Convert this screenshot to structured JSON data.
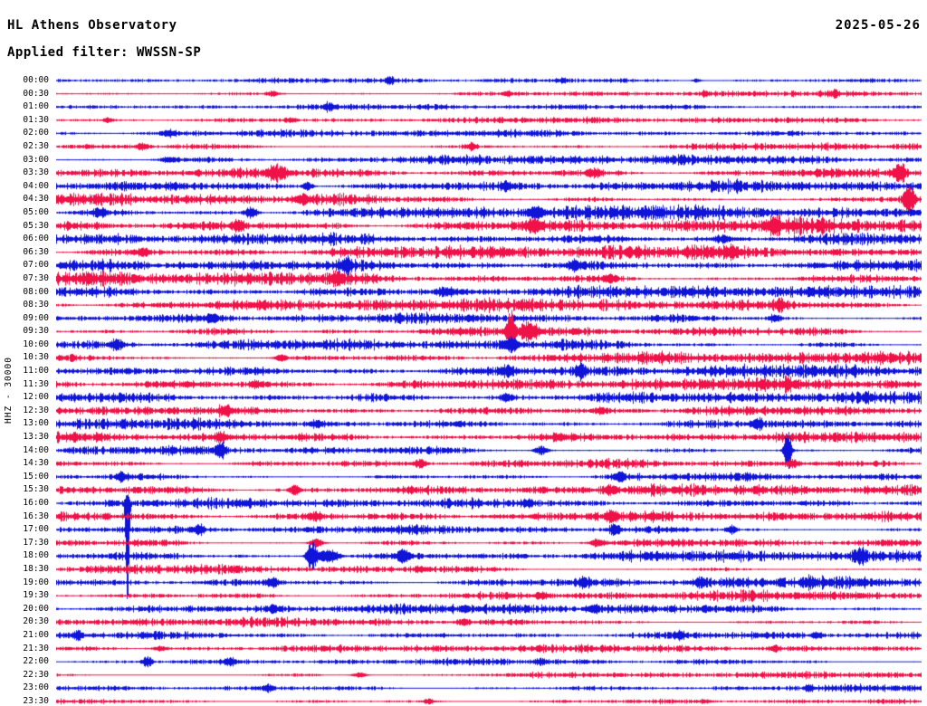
{
  "header": {
    "title": "HL Athens Observatory",
    "date": "2025-05-26",
    "filter_label": "Applied filter: WWSSN-SP"
  },
  "y_axis_label": "HHZ - 30000",
  "colors": {
    "blue": "#0f14d8",
    "red": "#ef1148",
    "background": "#ffffff",
    "text": "#000000"
  },
  "chart_data": {
    "type": "line",
    "title": "HL Athens Observatory helicorder day plot",
    "xlabel": "",
    "ylabel": "HHZ - 30000",
    "row_interval_minutes": 30,
    "legend": "off",
    "grid": "off",
    "rows": [
      {
        "time": "00:00",
        "color": "blue",
        "amp": 2.2,
        "ev": [
          {
            "pos": 0.385,
            "a": 5,
            "w": 3
          },
          {
            "pos": 0.585,
            "a": 2.5,
            "w": 4
          },
          {
            "pos": 0.74,
            "a": 2,
            "w": 3
          }
        ]
      },
      {
        "time": "00:30",
        "color": "red",
        "amp": 2.0,
        "ev": [
          {
            "pos": 0.25,
            "a": 3,
            "w": 4
          },
          {
            "pos": 0.52,
            "a": 2,
            "w": 4
          },
          {
            "pos": 0.75,
            "a": 3,
            "w": 3
          },
          {
            "pos": 0.9,
            "a": 3,
            "w": 3
          }
        ]
      },
      {
        "time": "01:00",
        "color": "blue",
        "amp": 2.0,
        "ev": [
          {
            "pos": 0.315,
            "a": 4,
            "w": 4
          }
        ]
      },
      {
        "time": "01:30",
        "color": "red",
        "amp": 2.2,
        "ev": [
          {
            "pos": 0.06,
            "a": 2,
            "w": 4
          },
          {
            "pos": 0.27,
            "a": 2,
            "w": 5
          }
        ]
      },
      {
        "time": "02:00",
        "color": "blue",
        "amp": 2.8,
        "ev": [
          {
            "pos": 0.13,
            "a": 3,
            "w": 5
          }
        ]
      },
      {
        "time": "02:30",
        "color": "red",
        "amp": 3.2,
        "ev": [
          {
            "pos": 0.1,
            "a": 3,
            "w": 5
          },
          {
            "pos": 0.48,
            "a": 4,
            "w": 4
          }
        ]
      },
      {
        "time": "03:00",
        "color": "blue",
        "amp": 3.6,
        "ev": [
          {
            "pos": 0.13,
            "a": 3,
            "w": 6
          }
        ]
      },
      {
        "time": "03:30",
        "color": "red",
        "amp": 4.2,
        "ev": [
          {
            "pos": 0.255,
            "a": 7,
            "w": 6
          },
          {
            "pos": 0.62,
            "a": 4,
            "w": 5
          },
          {
            "pos": 0.975,
            "a": 12,
            "w": 4
          }
        ]
      },
      {
        "time": "04:00",
        "color": "blue",
        "amp": 4.2,
        "ev": [
          {
            "pos": 0.29,
            "a": 5,
            "w": 4
          },
          {
            "pos": 0.52,
            "a": 3,
            "w": 5
          }
        ]
      },
      {
        "time": "04:30",
        "color": "red",
        "amp": 4.6,
        "ev": [
          {
            "pos": 0.285,
            "a": 5,
            "w": 5
          },
          {
            "pos": 0.985,
            "a": 16,
            "w": 4
          }
        ]
      },
      {
        "time": "05:00",
        "color": "blue",
        "amp": 5.0,
        "ev": [
          {
            "pos": 0.05,
            "a": 4,
            "w": 5
          },
          {
            "pos": 0.225,
            "a": 6,
            "w": 5
          },
          {
            "pos": 0.555,
            "a": 7,
            "w": 5
          }
        ]
      },
      {
        "time": "05:30",
        "color": "red",
        "amp": 5.0,
        "ev": [
          {
            "pos": 0.21,
            "a": 5,
            "w": 5
          },
          {
            "pos": 0.55,
            "a": 6,
            "w": 6
          },
          {
            "pos": 0.83,
            "a": 6,
            "w": 5
          }
        ]
      },
      {
        "time": "06:00",
        "color": "blue",
        "amp": 4.8,
        "ev": [
          {
            "pos": 0.77,
            "a": 4,
            "w": 6
          }
        ]
      },
      {
        "time": "06:30",
        "color": "red",
        "amp": 4.8,
        "ev": [
          {
            "pos": 0.1,
            "a": 4,
            "w": 5
          },
          {
            "pos": 0.78,
            "a": 4,
            "w": 5
          }
        ]
      },
      {
        "time": "07:00",
        "color": "blue",
        "amp": 4.8,
        "ev": [
          {
            "pos": 0.335,
            "a": 6,
            "w": 5
          },
          {
            "pos": 0.6,
            "a": 5,
            "w": 5
          }
        ]
      },
      {
        "time": "07:30",
        "color": "red",
        "amp": 4.8,
        "ev": [
          {
            "pos": 0.325,
            "a": 6,
            "w": 5
          },
          {
            "pos": 0.64,
            "a": 4,
            "w": 5
          }
        ]
      },
      {
        "time": "08:00",
        "color": "blue",
        "amp": 4.6,
        "ev": [
          {
            "pos": 0.45,
            "a": 4,
            "w": 6
          }
        ]
      },
      {
        "time": "08:30",
        "color": "red",
        "amp": 4.4,
        "ev": [
          {
            "pos": 0.835,
            "a": 6,
            "w": 4
          }
        ]
      },
      {
        "time": "09:00",
        "color": "blue",
        "amp": 4.4,
        "ev": [
          {
            "pos": 0.18,
            "a": 4,
            "w": 5
          },
          {
            "pos": 0.83,
            "a": 4,
            "w": 5
          }
        ]
      },
      {
        "time": "09:30",
        "color": "red",
        "amp": 4.4,
        "ev": [
          {
            "pos": 0.525,
            "a": 26,
            "w": 3
          },
          {
            "pos": 0.545,
            "a": 8,
            "w": 8
          }
        ]
      },
      {
        "time": "10:00",
        "color": "blue",
        "amp": 4.8,
        "ev": [
          {
            "pos": 0.07,
            "a": 4,
            "w": 5
          },
          {
            "pos": 0.525,
            "a": 6,
            "w": 6
          }
        ]
      },
      {
        "time": "10:30",
        "color": "red",
        "amp": 4.4,
        "ev": [
          {
            "pos": 0.26,
            "a": 4,
            "w": 5
          }
        ]
      },
      {
        "time": "11:00",
        "color": "blue",
        "amp": 4.4,
        "ev": [
          {
            "pos": 0.52,
            "a": 5,
            "w": 4
          },
          {
            "pos": 0.605,
            "a": 9,
            "w": 4
          }
        ]
      },
      {
        "time": "11:30",
        "color": "red",
        "amp": 4.2,
        "ev": [
          {
            "pos": 0.23,
            "a": 4,
            "w": 5
          },
          {
            "pos": 0.845,
            "a": 4,
            "w": 4
          }
        ]
      },
      {
        "time": "12:00",
        "color": "blue",
        "amp": 4.2,
        "ev": [
          {
            "pos": 0.52,
            "a": 4,
            "w": 5
          }
        ]
      },
      {
        "time": "12:30",
        "color": "red",
        "amp": 3.8,
        "ev": [
          {
            "pos": 0.195,
            "a": 4,
            "w": 5
          },
          {
            "pos": 0.63,
            "a": 3,
            "w": 5
          }
        ]
      },
      {
        "time": "13:00",
        "color": "blue",
        "amp": 3.8,
        "ev": [
          {
            "pos": 0.3,
            "a": 3,
            "w": 5
          },
          {
            "pos": 0.81,
            "a": 6,
            "w": 4
          }
        ]
      },
      {
        "time": "13:30",
        "color": "red",
        "amp": 3.8,
        "ev": [
          {
            "pos": 0.19,
            "a": 4,
            "w": 5
          },
          {
            "pos": 0.58,
            "a": 3,
            "w": 5
          }
        ]
      },
      {
        "time": "14:00",
        "color": "blue",
        "amp": 4.0,
        "ev": [
          {
            "pos": 0.19,
            "a": 8,
            "w": 4
          },
          {
            "pos": 0.56,
            "a": 5,
            "w": 5
          },
          {
            "pos": 0.845,
            "a": 22,
            "w": 3
          }
        ]
      },
      {
        "time": "14:30",
        "color": "red",
        "amp": 3.8,
        "ev": [
          {
            "pos": 0.42,
            "a": 5,
            "w": 5
          },
          {
            "pos": 0.85,
            "a": 4,
            "w": 6
          }
        ]
      },
      {
        "time": "15:00",
        "color": "blue",
        "amp": 3.8,
        "ev": [
          {
            "pos": 0.075,
            "a": 5,
            "w": 4
          },
          {
            "pos": 0.65,
            "a": 5,
            "w": 5
          }
        ]
      },
      {
        "time": "15:30",
        "color": "red",
        "amp": 3.8,
        "ev": [
          {
            "pos": 0.275,
            "a": 6,
            "w": 4
          },
          {
            "pos": 0.64,
            "a": 4,
            "w": 5
          }
        ]
      },
      {
        "time": "16:00",
        "color": "blue",
        "amp": 3.8,
        "ev": [
          {
            "pos": 0.082,
            "a": 10,
            "w": 1.6,
            "dn": 100
          },
          {
            "pos": 0.545,
            "a": 4,
            "w": 5
          }
        ]
      },
      {
        "time": "16:30",
        "color": "red",
        "amp": 3.8,
        "ev": [
          {
            "pos": 0.3,
            "a": 4,
            "w": 5
          },
          {
            "pos": 0.64,
            "a": 6,
            "w": 4
          }
        ]
      },
      {
        "time": "17:00",
        "color": "blue",
        "amp": 3.8,
        "ev": [
          {
            "pos": 0.165,
            "a": 5,
            "w": 4
          },
          {
            "pos": 0.645,
            "a": 7,
            "w": 4
          },
          {
            "pos": 0.78,
            "a": 5,
            "w": 4
          }
        ]
      },
      {
        "time": "17:30",
        "color": "red",
        "amp": 3.8,
        "ev": [
          {
            "pos": 0.3,
            "a": 5,
            "w": 5
          },
          {
            "pos": 0.625,
            "a": 4,
            "w": 5
          }
        ]
      },
      {
        "time": "18:00",
        "color": "blue",
        "amp": 4.0,
        "ev": [
          {
            "pos": 0.295,
            "a": 16,
            "w": 4
          },
          {
            "pos": 0.315,
            "a": 8,
            "w": 8
          },
          {
            "pos": 0.4,
            "a": 6,
            "w": 5
          },
          {
            "pos": 0.93,
            "a": 8,
            "w": 4
          }
        ]
      },
      {
        "time": "18:30",
        "color": "red",
        "amp": 3.6,
        "ev": [
          {
            "pos": 0.42,
            "a": 3,
            "w": 5
          }
        ]
      },
      {
        "time": "19:00",
        "color": "blue",
        "amp": 3.6,
        "ev": [
          {
            "pos": 0.25,
            "a": 4,
            "w": 5
          },
          {
            "pos": 0.61,
            "a": 5,
            "w": 4
          },
          {
            "pos": 0.745,
            "a": 5,
            "w": 4
          },
          {
            "pos": 0.87,
            "a": 4,
            "w": 4
          }
        ]
      },
      {
        "time": "19:30",
        "color": "red",
        "amp": 3.2,
        "ev": [
          {
            "pos": 0.56,
            "a": 3,
            "w": 5
          }
        ]
      },
      {
        "time": "20:00",
        "color": "blue",
        "amp": 3.4,
        "ev": [
          {
            "pos": 0.25,
            "a": 3,
            "w": 5
          },
          {
            "pos": 0.62,
            "a": 4,
            "w": 4
          }
        ]
      },
      {
        "time": "20:30",
        "color": "red",
        "amp": 3.0,
        "ev": [
          {
            "pos": 0.47,
            "a": 3,
            "w": 5
          }
        ]
      },
      {
        "time": "21:00",
        "color": "blue",
        "amp": 3.0,
        "ev": [
          {
            "pos": 0.025,
            "a": 5,
            "w": 3
          },
          {
            "pos": 0.72,
            "a": 4,
            "w": 4
          },
          {
            "pos": 0.88,
            "a": 3,
            "w": 4
          }
        ]
      },
      {
        "time": "21:30",
        "color": "red",
        "amp": 2.6,
        "ev": [
          {
            "pos": 0.12,
            "a": 2.5,
            "w": 5
          },
          {
            "pos": 0.83,
            "a": 3,
            "w": 4
          }
        ]
      },
      {
        "time": "22:00",
        "color": "blue",
        "amp": 3.0,
        "ev": [
          {
            "pos": 0.105,
            "a": 6,
            "w": 4
          },
          {
            "pos": 0.2,
            "a": 4,
            "w": 4
          },
          {
            "pos": 0.56,
            "a": 3,
            "w": 5
          }
        ]
      },
      {
        "time": "22:30",
        "color": "red",
        "amp": 2.4,
        "ev": [
          {
            "pos": 0.35,
            "a": 2.5,
            "w": 5
          }
        ]
      },
      {
        "time": "23:00",
        "color": "blue",
        "amp": 2.6,
        "ev": [
          {
            "pos": 0.245,
            "a": 4,
            "w": 4
          },
          {
            "pos": 0.87,
            "a": 4,
            "w": 3
          }
        ]
      },
      {
        "time": "23:30",
        "color": "red",
        "amp": 2.2,
        "ev": [
          {
            "pos": 0.43,
            "a": 3,
            "w": 4
          },
          {
            "pos": 0.75,
            "a": 2,
            "w": 4
          }
        ]
      }
    ]
  }
}
